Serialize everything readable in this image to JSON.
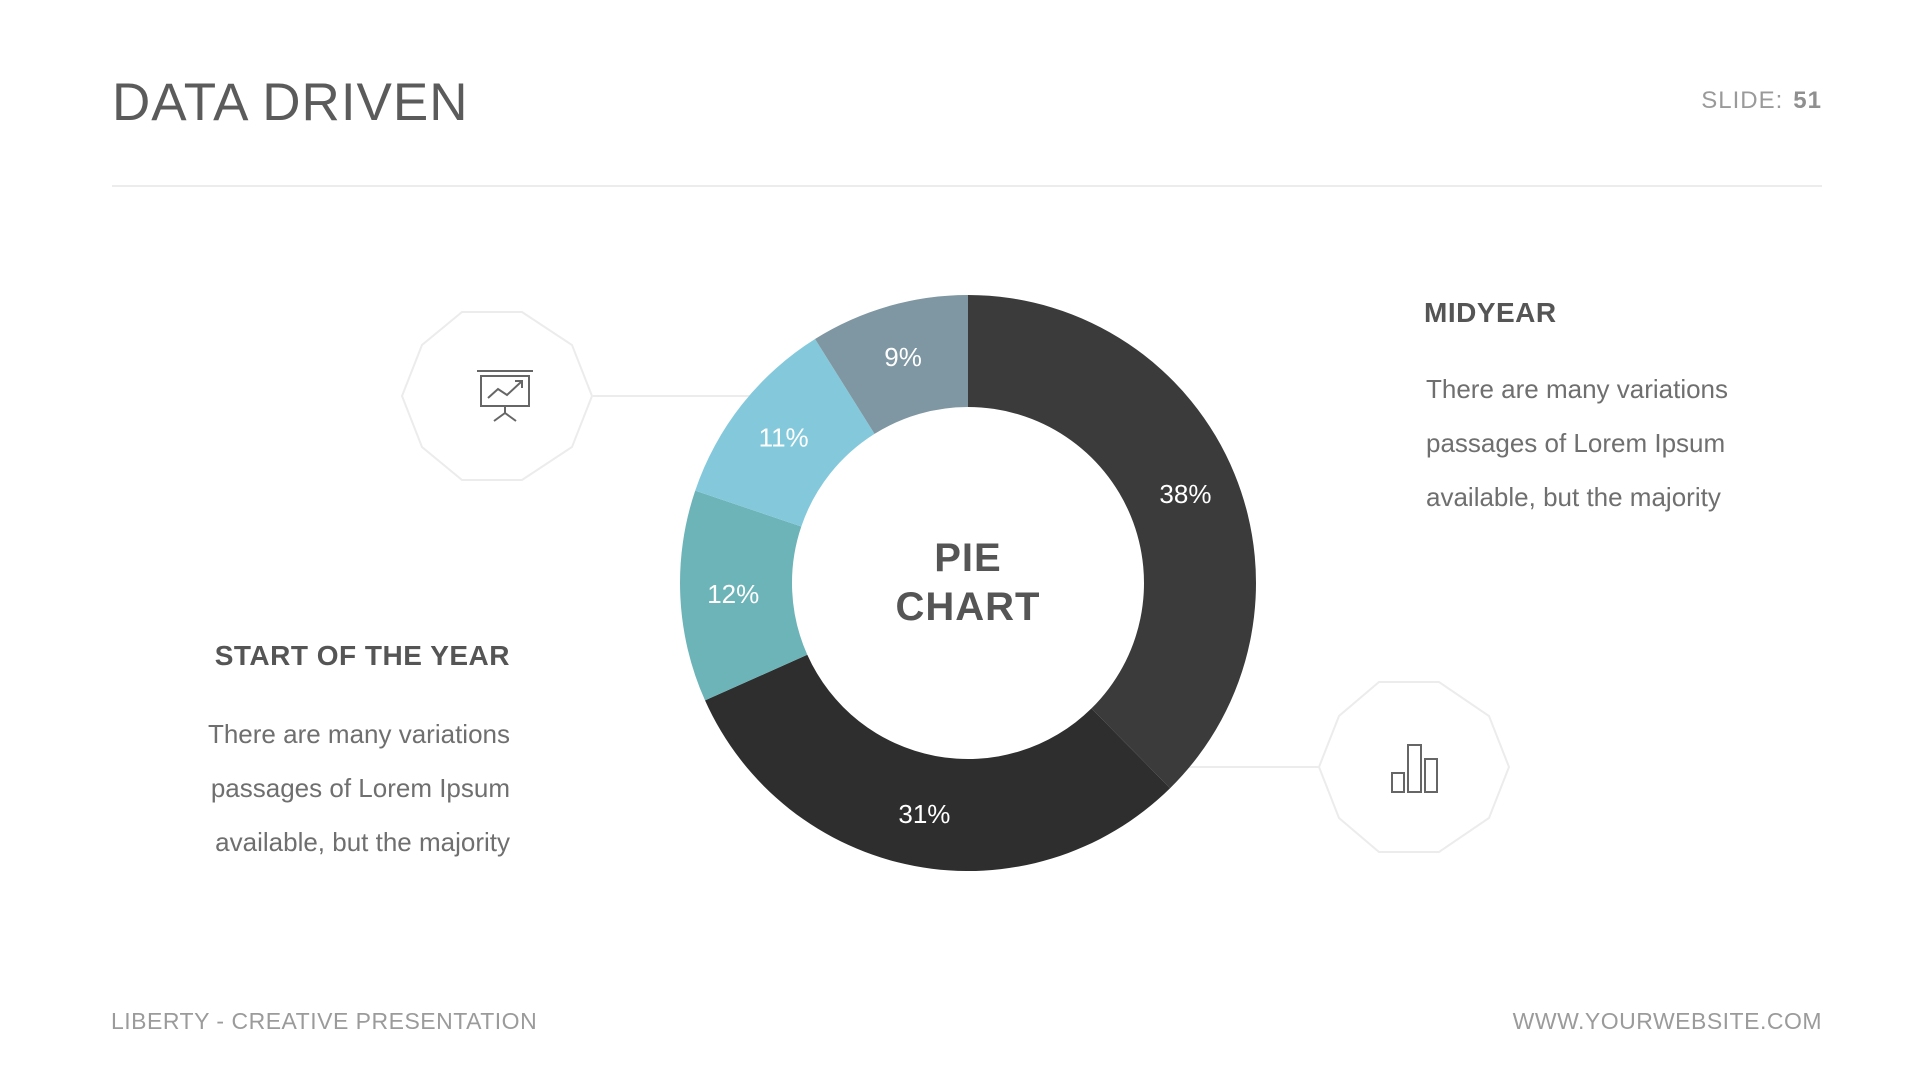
{
  "header": {
    "title": "DATA DRIVEN",
    "slide_label": "SLIDE:",
    "slide_number": "51"
  },
  "left_block": {
    "heading": "START OF THE YEAR",
    "lines": [
      "There are many variations",
      "passages of Lorem Ipsum",
      "available, but the majority"
    ],
    "icon": "presentation-board-icon"
  },
  "right_block": {
    "heading": "MIDYEAR",
    "lines": [
      "There are many variations",
      "passages of Lorem Ipsum",
      "available, but the majority"
    ],
    "icon": "bar-chart-icon"
  },
  "footer": {
    "left": "LIBERTY - CREATIVE PRESENTATION",
    "right": "WWW.YOURWEBSITE.COM"
  },
  "chart_data": {
    "type": "pie",
    "style": "donut",
    "center_label": [
      "PIE",
      "CHART"
    ],
    "slices": [
      {
        "label": "38%",
        "value": 38,
        "color": "#3b3b3b"
      },
      {
        "label": "31%",
        "value": 31,
        "color": "#2e2e2e"
      },
      {
        "label": "12%",
        "value": 12,
        "color": "#6db4b9"
      },
      {
        "label": "11%",
        "value": 11,
        "color": "#84c9db"
      },
      {
        "label": "9%",
        "value": 9,
        "color": "#7e97a2"
      }
    ]
  }
}
